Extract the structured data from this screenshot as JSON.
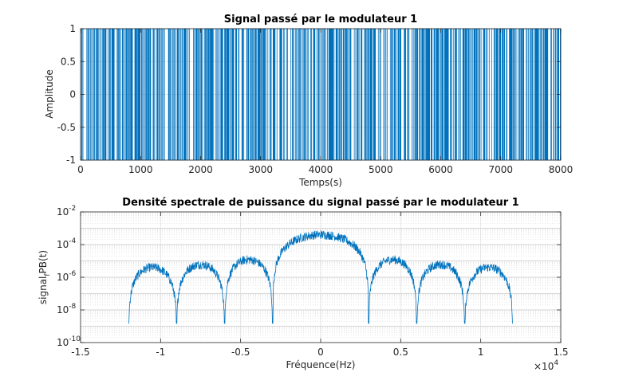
{
  "chart_data": [
    {
      "type": "line",
      "title": "Signal passé par le modulateur 1",
      "xlabel": "Temps(s)",
      "ylabel": "Amplitude",
      "xlim": [
        0,
        8000
      ],
      "ylim": [
        -1,
        1
      ],
      "grid": true,
      "color": "#0072BD",
      "xticks": [
        0,
        1000,
        2000,
        3000,
        4000,
        5000,
        6000,
        7000,
        8000
      ],
      "xtick_labels": [
        "0",
        "1000",
        "2000",
        "3000",
        "4000",
        "5000",
        "6000",
        "7000",
        "8000"
      ],
      "yticks": [
        -1,
        -0.5,
        0,
        0.5,
        1
      ],
      "ytick_labels": [
        "-1",
        "-0.5",
        "0",
        "0.5",
        "1"
      ],
      "series": [
        {
          "x": [
            0,
            8000
          ],
          "values": [
            -1,
            1
          ],
          "pattern": "random binary NRZ sequence switching between -1 and 1"
        }
      ]
    },
    {
      "type": "line",
      "title": "Densité spectrale de puissance du signal passé par le modulateur 1",
      "xlabel": "Fréquence(Hz)",
      "ylabel": "signal_{f}PB(t)",
      "ylabel_main": "signal",
      "ylabel_sub": "f",
      "ylabel_rest": "PB(t)",
      "x_multiplier": "×10",
      "x_multiplier_exp": "4",
      "xlim": [
        -1.5,
        1.5
      ],
      "yscale": "log",
      "ylim": [
        1e-10,
        0.01
      ],
      "grid": true,
      "minor_grid": true,
      "color": "#0072BD",
      "xticks": [
        -1.5,
        -1,
        -0.5,
        0,
        0.5,
        1,
        1.5
      ],
      "xtick_labels": [
        "-1.5",
        "-1",
        "-0.5",
        "0",
        "0.5",
        "1",
        "1.5"
      ],
      "yticks": [
        -10,
        -8,
        -6,
        -4,
        -2
      ],
      "ytick_base": "10",
      "ytick_exps": [
        "-10",
        "-8",
        "-6",
        "-4",
        "-2"
      ],
      "series": [
        {
          "x_range": [
            -1.2,
            1.2
          ],
          "nulls": [
            -1.2,
            -0.9,
            -0.6,
            -0.3,
            0.3,
            0.6,
            0.9,
            1.2
          ],
          "main_lobe_peak": 0.0004,
          "side_lobe_peaks": [
            4e-06,
            6e-06,
            1.2e-05,
            1.2e-05,
            6e-06,
            4e-06
          ]
        }
      ]
    }
  ]
}
